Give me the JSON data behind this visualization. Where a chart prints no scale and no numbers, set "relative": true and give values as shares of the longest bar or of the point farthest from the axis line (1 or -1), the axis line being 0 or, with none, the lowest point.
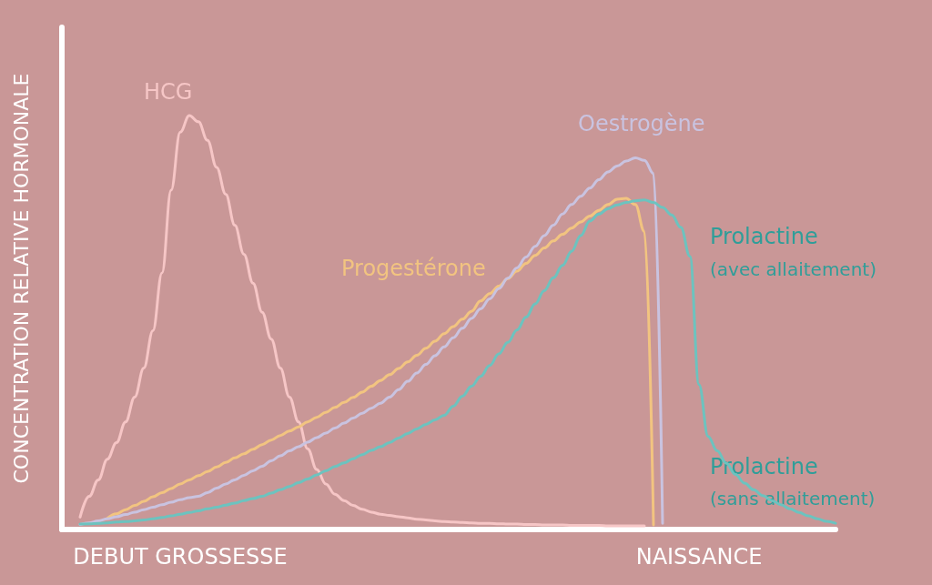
{
  "chart_data": {
    "type": "line",
    "relative": true,
    "ylabel": "CONCENTRATION RELATIVE HORMONALE",
    "categories": [
      null,
      null,
      null,
      null,
      null,
      null,
      null,
      null,
      null,
      null,
      null,
      null,
      null,
      "DEBUT GROSSESSE",
      null,
      null,
      null,
      null,
      null,
      null,
      null,
      null,
      null,
      null,
      null,
      null,
      null,
      null,
      null,
      null,
      null,
      null,
      null,
      null,
      null,
      null,
      null,
      null,
      null,
      null,
      null,
      null,
      null,
      null,
      null,
      null,
      null,
      null,
      null,
      null,
      null,
      null,
      null,
      null,
      null,
      null,
      null,
      null,
      null,
      null,
      null,
      null,
      null,
      null,
      null,
      null,
      null,
      null,
      null,
      null,
      "NAISSANCE",
      null,
      null,
      null,
      null,
      null,
      null,
      null,
      null,
      null,
      null,
      null,
      null,
      null,
      null,
      null
    ],
    "marker": "none",
    "line_style": "solid",
    "series": [
      {
        "name": "HCG",
        "color": "#f6c6c6",
        "values": [
          null,
          null,
          0.03,
          0.08,
          0.12,
          0.17,
          0.21,
          0.26,
          0.32,
          0.39,
          0.48,
          0.62,
          0.82,
          0.96,
          1,
          0.985,
          0.94,
          0.875,
          0.81,
          0.735,
          0.665,
          0.595,
          0.525,
          0.46,
          0.39,
          0.32,
          0.26,
          0.195,
          0.145,
          0.11,
          0.085,
          0.07,
          0.058,
          0.049,
          0.042,
          0.037,
          0.034,
          0.031,
          0.028,
          0.025,
          0.023,
          0.021,
          0.019,
          0.018,
          0.017,
          0.016,
          0.015,
          0.015,
          0.014,
          0.013,
          0.013,
          0.012,
          0.012,
          0.011,
          0.011,
          0.011,
          0.01,
          0.01,
          0.01,
          0.01,
          0.009,
          0.009,
          0.009,
          0.009,
          0.009,
          null,
          null,
          null,
          null,
          null,
          null,
          null,
          null,
          null,
          null,
          null,
          null,
          null,
          null,
          null,
          null,
          null,
          null,
          null,
          null,
          null
        ]
      },
      {
        "name": "Progestérone",
        "color": "#f2c480",
        "values": [
          null,
          null,
          null,
          null,
          null,
          0.027,
          0.038,
          0.048,
          0.058,
          0.068,
          0.079,
          0.089,
          0.099,
          0.11,
          0.12,
          0.13,
          0.14,
          0.151,
          0.162,
          0.173,
          0.183,
          0.194,
          0.205,
          0.216,
          0.227,
          0.238,
          0.248,
          0.26,
          0.271,
          0.283,
          0.295,
          0.307,
          0.319,
          0.332,
          0.346,
          0.36,
          0.374,
          0.389,
          0.405,
          0.421,
          0.438,
          0.455,
          0.473,
          0.49,
          0.508,
          0.527,
          0.552,
          0.57,
          0.588,
          0.606,
          0.624,
          0.643,
          0.662,
          0.68,
          0.697,
          0.713,
          0.728,
          0.743,
          0.757,
          0.771,
          0.785,
          0.798,
          0.8,
          0.785,
          0.72,
          0.011,
          null,
          null,
          null,
          null,
          null,
          null,
          null,
          null,
          null,
          null,
          null,
          null,
          null,
          null,
          null,
          null,
          null,
          null,
          null,
          null
        ]
      },
      {
        "name": "Oestrogène",
        "color": "#c9c3e0",
        "values": [
          null,
          null,
          0.012,
          0.016,
          0.021,
          0.026,
          0.031,
          0.036,
          0.042,
          0.048,
          0.054,
          0.06,
          0.066,
          0.072,
          0.077,
          0.08,
          0.089,
          0.1,
          0.11,
          0.12,
          0.131,
          0.142,
          0.153,
          0.166,
          0.178,
          0.19,
          0.2,
          0.211,
          0.222,
          0.233,
          0.245,
          0.257,
          0.269,
          0.281,
          0.293,
          0.305,
          0.32,
          0.338,
          0.358,
          0.378,
          0.399,
          0.42,
          0.441,
          0.463,
          0.486,
          0.51,
          0.533,
          0.557,
          0.582,
          0.607,
          0.632,
          0.658,
          0.684,
          0.71,
          0.735,
          0.762,
          0.785,
          0.805,
          0.825,
          0.845,
          0.864,
          0.878,
          0.89,
          0.898,
          0.892,
          0.86,
          0.015,
          null,
          null,
          null,
          null,
          null,
          null,
          null,
          null,
          null,
          null,
          null,
          null,
          null,
          null,
          null,
          null,
          null,
          null,
          null
        ]
      },
      {
        "color": "#6cc3bf",
        "values": [
          null,
          null,
          0.013,
          0.014,
          0.015,
          0.016,
          0.018,
          0.019,
          0.021,
          0.023,
          0.026,
          0.029,
          0.033,
          0.037,
          0.041,
          0.045,
          0.05,
          0.054,
          0.059,
          0.064,
          0.07,
          0.075,
          0.08,
          0.088,
          0.096,
          0.104,
          0.113,
          0.122,
          0.132,
          0.142,
          0.152,
          0.161,
          0.171,
          0.181,
          0.191,
          0.2,
          0.21,
          0.221,
          0.232,
          0.243,
          0.254,
          0.265,
          0.276,
          0.298,
          0.322,
          0.346,
          0.37,
          0.396,
          0.424,
          0.452,
          0.482,
          0.513,
          0.545,
          0.577,
          0.608,
          0.638,
          0.672,
          0.71,
          0.745,
          0.762,
          0.775,
          0.784,
          0.79,
          0.794,
          0.796,
          0.79,
          0.778,
          0.76,
          0.73,
          0.66,
          0.35,
          0.225,
          0.19,
          0.16,
          0.133,
          0.112,
          0.096,
          0.082,
          0.07,
          0.06,
          0.05,
          0.041,
          0.033,
          0.026,
          0.02,
          0.015
        ]
      }
    ],
    "annotations": [
      "Prolactine",
      "(avec allaitement)",
      "Prolactine",
      "(sans allaitement)"
    ]
  }
}
